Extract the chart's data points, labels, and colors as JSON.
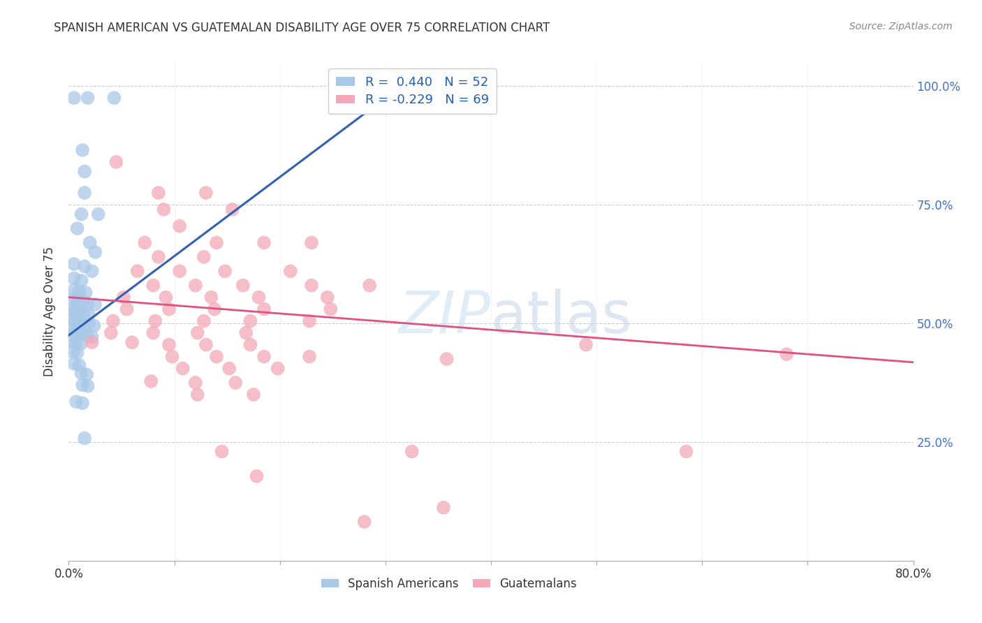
{
  "title": "SPANISH AMERICAN VS GUATEMALAN DISABILITY AGE OVER 75 CORRELATION CHART",
  "source": "Source: ZipAtlas.com",
  "ylabel": "Disability Age Over 75",
  "xlim": [
    0.0,
    0.8
  ],
  "ylim": [
    0.0,
    1.05
  ],
  "ytick_values": [
    0.0,
    0.25,
    0.5,
    0.75,
    1.0
  ],
  "xtick_values": [
    0.0,
    0.1,
    0.2,
    0.3,
    0.4,
    0.5,
    0.6,
    0.7,
    0.8
  ],
  "blue_color": "#a8c8e8",
  "pink_color": "#f4a8b8",
  "blue_line_color": "#3060b0",
  "pink_line_color": "#e05080",
  "watermark_zip": "ZIP",
  "watermark_atlas": "atlas",
  "background_color": "#ffffff",
  "blue_trendline": [
    [
      0.0,
      0.475
    ],
    [
      0.3,
      0.975
    ]
  ],
  "pink_trendline": [
    [
      0.0,
      0.555
    ],
    [
      0.8,
      0.418
    ]
  ],
  "spanish_americans": [
    [
      0.005,
      0.975
    ],
    [
      0.018,
      0.975
    ],
    [
      0.043,
      0.975
    ],
    [
      0.013,
      0.865
    ],
    [
      0.015,
      0.82
    ],
    [
      0.015,
      0.775
    ],
    [
      0.012,
      0.73
    ],
    [
      0.028,
      0.73
    ],
    [
      0.008,
      0.7
    ],
    [
      0.02,
      0.67
    ],
    [
      0.025,
      0.65
    ],
    [
      0.005,
      0.625
    ],
    [
      0.015,
      0.62
    ],
    [
      0.022,
      0.61
    ],
    [
      0.005,
      0.595
    ],
    [
      0.012,
      0.59
    ],
    [
      0.005,
      0.57
    ],
    [
      0.01,
      0.568
    ],
    [
      0.016,
      0.565
    ],
    [
      0.004,
      0.55
    ],
    [
      0.008,
      0.548
    ],
    [
      0.013,
      0.545
    ],
    [
      0.018,
      0.542
    ],
    [
      0.025,
      0.54
    ],
    [
      0.003,
      0.528
    ],
    [
      0.006,
      0.525
    ],
    [
      0.009,
      0.522
    ],
    [
      0.014,
      0.52
    ],
    [
      0.019,
      0.518
    ],
    [
      0.003,
      0.508
    ],
    [
      0.006,
      0.505
    ],
    [
      0.01,
      0.502
    ],
    [
      0.014,
      0.5
    ],
    [
      0.019,
      0.498
    ],
    [
      0.024,
      0.495
    ],
    [
      0.003,
      0.485
    ],
    [
      0.006,
      0.483
    ],
    [
      0.009,
      0.48
    ],
    [
      0.013,
      0.478
    ],
    [
      0.017,
      0.475
    ],
    [
      0.022,
      0.472
    ],
    [
      0.003,
      0.462
    ],
    [
      0.007,
      0.46
    ],
    [
      0.012,
      0.458
    ],
    [
      0.004,
      0.44
    ],
    [
      0.008,
      0.438
    ],
    [
      0.005,
      0.415
    ],
    [
      0.01,
      0.412
    ],
    [
      0.012,
      0.395
    ],
    [
      0.017,
      0.392
    ],
    [
      0.013,
      0.37
    ],
    [
      0.018,
      0.368
    ],
    [
      0.007,
      0.335
    ],
    [
      0.013,
      0.332
    ],
    [
      0.015,
      0.258
    ]
  ],
  "guatemalans": [
    [
      0.045,
      0.84
    ],
    [
      0.085,
      0.775
    ],
    [
      0.13,
      0.775
    ],
    [
      0.09,
      0.74
    ],
    [
      0.155,
      0.74
    ],
    [
      0.105,
      0.705
    ],
    [
      0.072,
      0.67
    ],
    [
      0.14,
      0.67
    ],
    [
      0.185,
      0.67
    ],
    [
      0.23,
      0.67
    ],
    [
      0.085,
      0.64
    ],
    [
      0.128,
      0.64
    ],
    [
      0.065,
      0.61
    ],
    [
      0.105,
      0.61
    ],
    [
      0.148,
      0.61
    ],
    [
      0.21,
      0.61
    ],
    [
      0.08,
      0.58
    ],
    [
      0.12,
      0.58
    ],
    [
      0.165,
      0.58
    ],
    [
      0.23,
      0.58
    ],
    [
      0.285,
      0.58
    ],
    [
      0.052,
      0.555
    ],
    [
      0.092,
      0.555
    ],
    [
      0.135,
      0.555
    ],
    [
      0.18,
      0.555
    ],
    [
      0.245,
      0.555
    ],
    [
      0.055,
      0.53
    ],
    [
      0.095,
      0.53
    ],
    [
      0.138,
      0.53
    ],
    [
      0.185,
      0.53
    ],
    [
      0.248,
      0.53
    ],
    [
      0.042,
      0.505
    ],
    [
      0.082,
      0.505
    ],
    [
      0.128,
      0.505
    ],
    [
      0.172,
      0.505
    ],
    [
      0.228,
      0.505
    ],
    [
      0.04,
      0.48
    ],
    [
      0.08,
      0.48
    ],
    [
      0.122,
      0.48
    ],
    [
      0.168,
      0.48
    ],
    [
      0.022,
      0.46
    ],
    [
      0.06,
      0.46
    ],
    [
      0.095,
      0.455
    ],
    [
      0.13,
      0.455
    ],
    [
      0.172,
      0.455
    ],
    [
      0.098,
      0.43
    ],
    [
      0.14,
      0.43
    ],
    [
      0.185,
      0.43
    ],
    [
      0.228,
      0.43
    ],
    [
      0.108,
      0.405
    ],
    [
      0.152,
      0.405
    ],
    [
      0.198,
      0.405
    ],
    [
      0.078,
      0.378
    ],
    [
      0.12,
      0.375
    ],
    [
      0.158,
      0.375
    ],
    [
      0.122,
      0.35
    ],
    [
      0.175,
      0.35
    ],
    [
      0.358,
      0.425
    ],
    [
      0.145,
      0.23
    ],
    [
      0.325,
      0.23
    ],
    [
      0.585,
      0.23
    ],
    [
      0.178,
      0.178
    ],
    [
      0.355,
      0.112
    ],
    [
      0.28,
      0.082
    ],
    [
      0.49,
      0.455
    ],
    [
      0.68,
      0.435
    ]
  ]
}
